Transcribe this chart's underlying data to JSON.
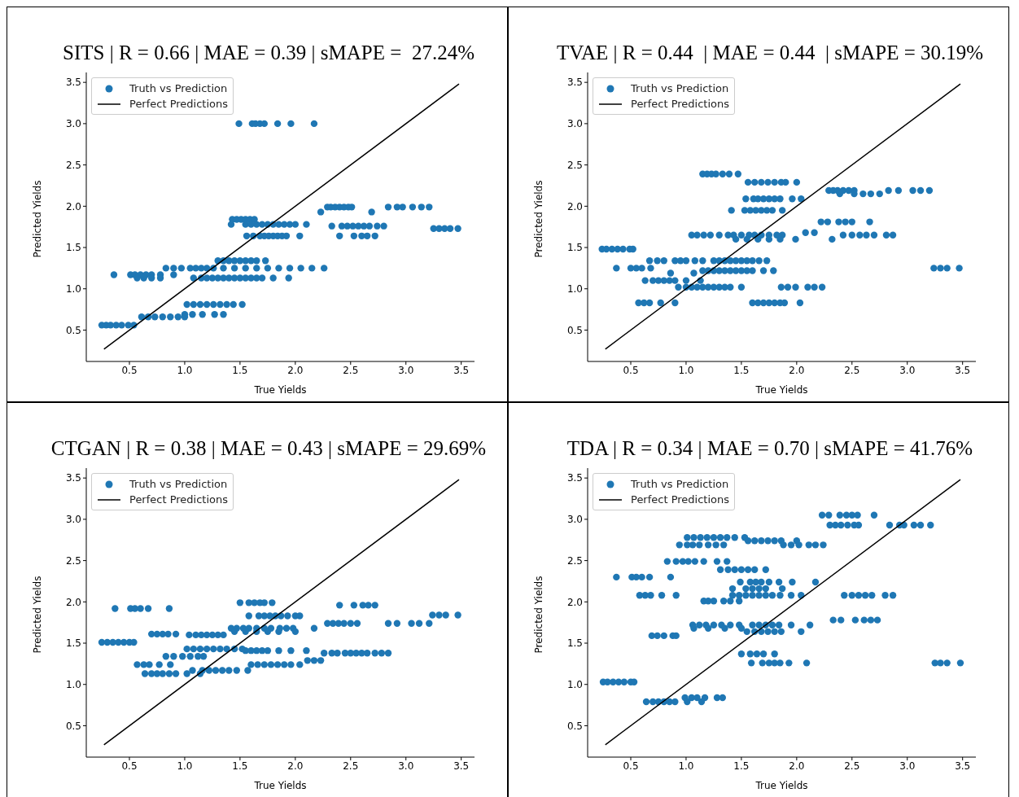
{
  "chart_data": [
    {
      "type": "scatter",
      "title": "SITS | R = 0.66 | MAE = 0.39 | sMAPE =  27.24%",
      "xlabel": "True Yields",
      "ylabel": "Predicted Yields",
      "xlim": [
        0.11,
        3.62
      ],
      "ylim": [
        0.12,
        3.62
      ],
      "xticks": [
        0.5,
        {
          "value": 1,
          "label": "1.0"
        },
        1.5,
        {
          "value": 2,
          "label": "2.0"
        },
        2.5,
        {
          "value": 3,
          "label": "3.0"
        },
        3.5
      ],
      "yticks": [
        0.5,
        {
          "value": 1,
          "label": "1.0"
        },
        1.5,
        {
          "value": 2,
          "label": "2.0"
        },
        2.5,
        {
          "value": 3,
          "label": "3.0"
        },
        3.5
      ],
      "legend": "top left",
      "series": [
        {
          "name": "Truth vs Prediction",
          "color": "#1f77b4",
          "marker": "circle",
          "x": [
            1.49,
            1.61,
            1.64,
            1.68,
            1.72,
            1.84,
            1.96,
            2.17,
            2.29,
            2.32,
            2.36,
            2.4,
            2.44,
            2.48,
            2.51,
            2.84,
            2.92,
            2.97,
            3.06,
            3.14,
            3.21,
            2.23,
            2.69,
            1.43,
            1.47,
            1.51,
            1.55,
            1.59,
            1.63,
            1.42,
            1.55,
            1.6,
            1.65,
            1.7,
            1.75,
            1.8,
            1.85,
            1.9,
            1.95,
            2.0,
            2.1,
            2.33,
            2.42,
            2.47,
            2.52,
            2.57,
            2.62,
            2.67,
            2.74,
            2.8,
            3.25,
            3.3,
            3.35,
            3.4,
            3.47,
            1.56,
            1.62,
            1.68,
            1.72,
            1.76,
            1.8,
            1.84,
            1.88,
            1.92,
            2.04,
            2.4,
            2.53,
            2.6,
            2.65,
            2.72,
            1.3,
            1.35,
            1.4,
            1.45,
            1.5,
            1.55,
            1.6,
            1.65,
            1.73,
            0.83,
            0.9,
            0.97,
            1.05,
            1.1,
            1.15,
            1.2,
            1.26,
            1.35,
            1.45,
            1.55,
            1.65,
            1.75,
            1.85,
            1.95,
            2.05,
            2.15,
            2.26,
            0.36,
            0.51,
            0.55,
            0.6,
            0.65,
            0.7,
            0.78,
            0.9,
            0.57,
            0.63,
            0.7,
            0.78,
            1.08,
            1.15,
            1.2,
            1.25,
            1.3,
            1.35,
            1.4,
            1.45,
            1.5,
            1.55,
            1.6,
            1.65,
            1.7,
            1.8,
            1.94,
            1.02,
            1.08,
            1.14,
            1.2,
            1.26,
            1.32,
            1.38,
            1.44,
            1.52,
            1.0,
            1.07,
            1.16,
            1.27,
            1.35,
            0.61,
            0.67,
            0.73,
            0.8,
            0.87,
            0.94,
            1.0,
            0.25,
            0.29,
            0.33,
            0.38,
            0.43,
            0.49,
            0.54
          ],
          "values": [
            3.0,
            3.0,
            3.0,
            3.0,
            3.0,
            3.0,
            3.0,
            3.0,
            1.99,
            1.99,
            1.99,
            1.99,
            1.99,
            1.99,
            1.99,
            1.99,
            1.99,
            1.99,
            1.99,
            1.99,
            1.99,
            1.93,
            1.93,
            1.84,
            1.84,
            1.84,
            1.84,
            1.84,
            1.84,
            1.78,
            1.78,
            1.78,
            1.78,
            1.78,
            1.78,
            1.78,
            1.78,
            1.78,
            1.78,
            1.78,
            1.78,
            1.76,
            1.76,
            1.76,
            1.76,
            1.76,
            1.76,
            1.76,
            1.76,
            1.76,
            1.73,
            1.73,
            1.73,
            1.73,
            1.73,
            1.64,
            1.64,
            1.64,
            1.64,
            1.64,
            1.64,
            1.64,
            1.64,
            1.64,
            1.64,
            1.64,
            1.64,
            1.64,
            1.64,
            1.64,
            1.34,
            1.34,
            1.34,
            1.34,
            1.34,
            1.34,
            1.34,
            1.34,
            1.34,
            1.25,
            1.25,
            1.25,
            1.25,
            1.25,
            1.25,
            1.25,
            1.25,
            1.25,
            1.25,
            1.25,
            1.25,
            1.25,
            1.25,
            1.25,
            1.25,
            1.25,
            1.25,
            1.17,
            1.17,
            1.17,
            1.17,
            1.17,
            1.17,
            1.17,
            1.17,
            1.13,
            1.13,
            1.13,
            1.13,
            1.13,
            1.13,
            1.13,
            1.13,
            1.13,
            1.13,
            1.13,
            1.13,
            1.13,
            1.13,
            1.13,
            1.13,
            1.13,
            1.13,
            1.13,
            0.81,
            0.81,
            0.81,
            0.81,
            0.81,
            0.81,
            0.81,
            0.81,
            0.81,
            0.69,
            0.69,
            0.69,
            0.69,
            0.69,
            0.66,
            0.66,
            0.66,
            0.66,
            0.66,
            0.66,
            0.66,
            0.56,
            0.56,
            0.56,
            0.56,
            0.56,
            0.56,
            0.56
          ]
        },
        {
          "name": "Perfect Predictions",
          "type": "line",
          "color": "#000000",
          "x": [
            0.27,
            3.48
          ],
          "values": [
            0.27,
            3.48
          ]
        }
      ]
    },
    {
      "type": "scatter",
      "title": "TVAE | R = 0.44  | MAE = 0.44  | sMAPE = 30.19%",
      "xlabel": "True Yields",
      "ylabel": "Predicted Yields",
      "xlim": [
        0.11,
        3.62
      ],
      "ylim": [
        0.12,
        3.62
      ],
      "xticks": [
        0.5,
        {
          "value": 1,
          "label": "1.0"
        },
        1.5,
        {
          "value": 2,
          "label": "2.0"
        },
        2.5,
        {
          "value": 3,
          "label": "3.0"
        },
        3.5
      ],
      "yticks": [
        0.5,
        {
          "value": 1,
          "label": "1.0"
        },
        1.5,
        {
          "value": 2,
          "label": "2.0"
        },
        2.5,
        {
          "value": 3,
          "label": "3.0"
        },
        3.5
      ],
      "legend": "top left",
      "series": [
        {
          "name": "Truth vs Prediction",
          "color": "#1f77b4",
          "marker": "circle",
          "x": [
            1.15,
            1.19,
            1.23,
            1.27,
            1.33,
            1.39,
            1.47,
            1.56,
            1.62,
            1.68,
            1.74,
            1.8,
            1.86,
            1.9,
            2.0,
            2.29,
            2.33,
            2.37,
            2.42,
            2.47,
            2.52,
            2.83,
            2.92,
            3.05,
            3.12,
            3.2,
            2.39,
            2.52,
            2.6,
            2.67,
            2.75,
            1.54,
            1.61,
            1.65,
            1.7,
            1.75,
            1.8,
            1.85,
            1.96,
            2.04,
            1.41,
            1.53,
            1.58,
            1.63,
            1.68,
            1.73,
            1.78,
            1.87,
            2.22,
            2.28,
            2.38,
            2.44,
            2.5,
            2.66,
            2.08,
            2.16,
            1.05,
            1.1,
            1.16,
            1.22,
            1.3,
            1.38,
            1.43,
            1.5,
            1.57,
            1.62,
            1.68,
            1.75,
            1.82,
            1.87,
            2.42,
            2.5,
            2.57,
            2.63,
            2.7,
            2.81,
            2.87,
            1.45,
            1.55,
            1.65,
            1.75,
            1.85,
            1.99,
            2.32,
            0.24,
            0.28,
            0.33,
            0.38,
            0.43,
            0.49,
            0.52,
            0.67,
            0.74,
            0.8,
            0.9,
            0.95,
            1.0,
            1.08,
            1.15,
            1.25,
            1.3,
            1.35,
            1.4,
            1.45,
            1.5,
            1.55,
            1.6,
            1.66,
            1.73,
            0.37,
            0.5,
            0.55,
            0.6,
            0.68,
            3.24,
            3.3,
            3.36,
            3.47,
            1.15,
            1.2,
            1.25,
            1.3,
            1.35,
            1.4,
            1.45,
            1.5,
            1.55,
            1.6,
            1.7,
            1.79,
            0.86,
            1.07,
            0.63,
            0.7,
            0.75,
            0.8,
            0.85,
            0.9,
            1.0,
            1.13,
            0.93,
            1.0,
            1.05,
            1.1,
            1.15,
            1.2,
            1.25,
            1.3,
            1.35,
            1.4,
            1.5,
            1.86,
            1.92,
            1.99,
            2.1,
            2.16,
            2.23,
            0.57,
            0.62,
            0.67,
            0.77,
            0.9,
            1.6,
            1.65,
            1.7,
            1.75,
            1.8,
            1.85,
            1.89,
            2.03
          ],
          "values": [
            2.39,
            2.39,
            2.39,
            2.39,
            2.39,
            2.39,
            2.39,
            2.29,
            2.29,
            2.29,
            2.29,
            2.29,
            2.29,
            2.29,
            2.29,
            2.19,
            2.19,
            2.19,
            2.19,
            2.19,
            2.19,
            2.19,
            2.19,
            2.19,
            2.19,
            2.19,
            2.15,
            2.15,
            2.15,
            2.15,
            2.15,
            2.09,
            2.09,
            2.09,
            2.09,
            2.09,
            2.09,
            2.09,
            2.09,
            2.09,
            1.95,
            1.95,
            1.95,
            1.95,
            1.95,
            1.95,
            1.95,
            1.95,
            1.81,
            1.81,
            1.81,
            1.81,
            1.81,
            1.81,
            1.68,
            1.68,
            1.65,
            1.65,
            1.65,
            1.65,
            1.65,
            1.65,
            1.65,
            1.65,
            1.65,
            1.65,
            1.65,
            1.65,
            1.65,
            1.65,
            1.65,
            1.65,
            1.65,
            1.65,
            1.65,
            1.65,
            1.65,
            1.6,
            1.6,
            1.6,
            1.6,
            1.6,
            1.6,
            1.6,
            1.48,
            1.48,
            1.48,
            1.48,
            1.48,
            1.48,
            1.48,
            1.34,
            1.34,
            1.34,
            1.34,
            1.34,
            1.34,
            1.34,
            1.34,
            1.34,
            1.34,
            1.34,
            1.34,
            1.34,
            1.34,
            1.34,
            1.34,
            1.34,
            1.34,
            1.25,
            1.25,
            1.25,
            1.25,
            1.25,
            1.25,
            1.25,
            1.25,
            1.25,
            1.22,
            1.22,
            1.22,
            1.22,
            1.22,
            1.22,
            1.22,
            1.22,
            1.22,
            1.22,
            1.22,
            1.22,
            1.19,
            1.19,
            1.1,
            1.1,
            1.1,
            1.1,
            1.1,
            1.1,
            1.1,
            1.1,
            1.02,
            1.02,
            1.02,
            1.02,
            1.02,
            1.02,
            1.02,
            1.02,
            1.02,
            1.02,
            1.02,
            1.02,
            1.02,
            1.02,
            1.02,
            1.02,
            1.02,
            0.83,
            0.83,
            0.83,
            0.83,
            0.83,
            0.83,
            0.83,
            0.83,
            0.83,
            0.83,
            0.83,
            0.83,
            0.83
          ]
        },
        {
          "name": "Perfect Predictions",
          "type": "line",
          "color": "#000000",
          "x": [
            0.27,
            3.48
          ],
          "values": [
            0.27,
            3.48
          ]
        }
      ]
    },
    {
      "type": "scatter",
      "title": "CTGAN | R = 0.38 | MAE = 0.43 | sMAPE = 29.69%",
      "xlabel": "True Yields",
      "ylabel": "Predicted Yields",
      "xlim": [
        0.11,
        3.62
      ],
      "ylim": [
        0.12,
        3.62
      ],
      "xticks": [
        0.5,
        {
          "value": 1,
          "label": "1.0"
        },
        1.5,
        {
          "value": 2,
          "label": "2.0"
        },
        2.5,
        {
          "value": 3,
          "label": "3.0"
        },
        3.5
      ],
      "yticks": [
        0.5,
        {
          "value": 1,
          "label": "1.0"
        },
        1.5,
        {
          "value": 2,
          "label": "2.0"
        },
        2.5,
        {
          "value": 3,
          "label": "3.0"
        },
        3.5
      ],
      "legend": "top left",
      "series": [
        {
          "name": "Truth vs Prediction",
          "color": "#1f77b4",
          "marker": "circle",
          "x": [
            1.5,
            1.58,
            1.63,
            1.68,
            1.72,
            1.79,
            2.4,
            2.53,
            2.61,
            2.66,
            2.72,
            0.37,
            0.51,
            0.55,
            0.6,
            0.67,
            0.86,
            3.24,
            3.3,
            3.36,
            3.47,
            1.58,
            1.67,
            1.72,
            1.77,
            1.82,
            1.87,
            1.93,
            2.0,
            2.04,
            2.29,
            2.34,
            2.39,
            2.44,
            2.5,
            2.56,
            2.84,
            2.92,
            3.05,
            3.12,
            3.21,
            1.42,
            1.47,
            1.53,
            1.58,
            1.65,
            1.72,
            1.78,
            1.86,
            1.92,
            1.98,
            2.17,
            1.45,
            1.55,
            1.65,
            1.75,
            1.85,
            2.0,
            0.7,
            0.75,
            0.8,
            0.85,
            0.92,
            1.04,
            1.1,
            1.15,
            1.2,
            1.25,
            1.3,
            1.35,
            0.25,
            0.3,
            0.35,
            0.4,
            0.45,
            0.5,
            0.54,
            1.02,
            1.08,
            1.14,
            1.2,
            1.26,
            1.32,
            1.38,
            1.45,
            1.52,
            1.55,
            1.6,
            1.65,
            1.7,
            1.75,
            1.85,
            1.96,
            2.1,
            2.26,
            2.33,
            2.38,
            2.45,
            2.5,
            2.55,
            2.6,
            2.65,
            2.72,
            2.78,
            2.84,
            0.83,
            0.9,
            0.98,
            1.05,
            1.12,
            1.17,
            2.11,
            2.17,
            2.23,
            0.57,
            0.63,
            0.68,
            0.77,
            0.87,
            1.6,
            1.66,
            1.72,
            1.78,
            1.84,
            1.9,
            1.96,
            2.04,
            1.07,
            1.16,
            1.22,
            1.28,
            1.34,
            1.4,
            1.47,
            1.57,
            0.64,
            0.7,
            0.75,
            0.8,
            0.86,
            0.92,
            1.02,
            1.14
          ],
          "values": [
            1.99,
            1.99,
            1.99,
            1.99,
            1.99,
            1.99,
            1.96,
            1.96,
            1.96,
            1.96,
            1.96,
            1.92,
            1.92,
            1.92,
            1.92,
            1.92,
            1.92,
            1.84,
            1.84,
            1.84,
            1.84,
            1.83,
            1.83,
            1.83,
            1.83,
            1.83,
            1.83,
            1.83,
            1.83,
            1.83,
            1.74,
            1.74,
            1.74,
            1.74,
            1.74,
            1.74,
            1.74,
            1.74,
            1.74,
            1.74,
            1.74,
            1.68,
            1.68,
            1.68,
            1.68,
            1.68,
            1.68,
            1.68,
            1.68,
            1.68,
            1.68,
            1.68,
            1.64,
            1.64,
            1.64,
            1.64,
            1.64,
            1.64,
            1.61,
            1.61,
            1.61,
            1.61,
            1.61,
            1.6,
            1.6,
            1.6,
            1.6,
            1.6,
            1.6,
            1.6,
            1.51,
            1.51,
            1.51,
            1.51,
            1.51,
            1.51,
            1.51,
            1.43,
            1.43,
            1.43,
            1.43,
            1.43,
            1.43,
            1.43,
            1.43,
            1.43,
            1.41,
            1.41,
            1.41,
            1.41,
            1.41,
            1.41,
            1.41,
            1.41,
            1.38,
            1.38,
            1.38,
            1.38,
            1.38,
            1.38,
            1.38,
            1.38,
            1.38,
            1.38,
            1.38,
            1.34,
            1.34,
            1.34,
            1.34,
            1.34,
            1.34,
            1.29,
            1.29,
            1.29,
            1.24,
            1.24,
            1.24,
            1.24,
            1.24,
            1.24,
            1.24,
            1.24,
            1.24,
            1.24,
            1.24,
            1.24,
            1.24,
            1.17,
            1.17,
            1.17,
            1.17,
            1.17,
            1.17,
            1.17,
            1.17,
            1.13,
            1.13,
            1.13,
            1.13,
            1.13,
            1.13,
            1.13,
            1.13
          ]
        },
        {
          "name": "Perfect Predictions",
          "type": "line",
          "color": "#000000",
          "x": [
            0.27,
            3.48
          ],
          "values": [
            0.27,
            3.48
          ]
        }
      ]
    },
    {
      "type": "scatter",
      "title": "TDA | R = 0.34 | MAE = 0.70 | sMAPE = 41.76%",
      "xlabel": "True Yields",
      "ylabel": "Predicted Yields",
      "xlim": [
        0.11,
        3.62
      ],
      "ylim": [
        0.12,
        3.62
      ],
      "xticks": [
        0.5,
        {
          "value": 1,
          "label": "1.0"
        },
        1.5,
        {
          "value": 2,
          "label": "2.0"
        },
        2.5,
        {
          "value": 3,
          "label": "3.0"
        },
        3.5
      ],
      "yticks": [
        0.5,
        {
          "value": 1,
          "label": "1.0"
        },
        1.5,
        {
          "value": 2,
          "label": "2.0"
        },
        2.5,
        {
          "value": 3,
          "label": "3.0"
        },
        3.5
      ],
      "legend": "top left",
      "series": [
        {
          "name": "Truth vs Prediction",
          "color": "#1f77b4",
          "marker": "circle",
          "x": [
            2.23,
            2.29,
            2.39,
            2.45,
            2.5,
            2.55,
            2.7,
            2.3,
            2.35,
            2.4,
            2.46,
            2.52,
            2.56,
            2.84,
            2.93,
            2.97,
            3.06,
            3.12,
            3.21,
            1.01,
            1.07,
            1.13,
            1.19,
            1.25,
            1.31,
            1.37,
            1.44,
            1.53,
            1.56,
            1.62,
            1.68,
            1.74,
            1.8,
            1.86,
            2.0,
            0.94,
            1.01,
            1.06,
            1.12,
            1.2,
            1.27,
            1.34,
            1.88,
            1.95,
            2.02,
            2.11,
            2.17,
            2.24,
            0.83,
            0.91,
            0.97,
            1.02,
            1.08,
            1.16,
            1.28,
            1.37,
            1.31,
            1.38,
            1.44,
            1.5,
            1.56,
            1.62,
            1.72,
            0.37,
            0.51,
            0.55,
            0.6,
            0.67,
            0.86,
            1.49,
            1.58,
            1.63,
            1.68,
            1.75,
            1.84,
            1.96,
            2.17,
            1.42,
            1.54,
            1.6,
            1.66,
            1.72,
            1.87,
            0.58,
            0.63,
            0.68,
            0.78,
            0.91,
            1.42,
            1.48,
            1.54,
            1.6,
            1.66,
            1.72,
            1.78,
            1.85,
            1.95,
            2.04,
            2.43,
            2.5,
            2.56,
            2.62,
            2.68,
            2.8,
            2.87,
            1.16,
            1.2,
            1.25,
            1.34,
            1.4,
            1.48,
            2.33,
            2.4,
            2.53,
            2.61,
            2.67,
            2.73,
            1.06,
            1.12,
            1.18,
            1.25,
            1.32,
            1.4,
            1.48,
            1.6,
            1.66,
            1.72,
            1.78,
            1.84,
            1.95,
            2.12,
            1.07,
            1.2,
            1.35,
            1.5,
            1.55,
            1.62,
            1.68,
            1.74,
            1.8,
            1.86,
            2.04,
            0.69,
            0.74,
            0.8,
            0.88,
            0.91,
            1.5,
            1.58,
            1.64,
            1.7,
            1.8,
            1.59,
            1.69,
            1.75,
            1.8,
            1.85,
            1.93,
            2.09,
            3.25,
            3.3,
            3.36,
            3.48,
            0.25,
            0.29,
            0.34,
            0.39,
            0.44,
            0.5,
            0.53,
            0.99,
            1.05,
            1.1,
            1.17,
            1.28,
            1.33,
            0.64,
            0.7,
            0.75,
            0.8,
            0.85,
            0.9,
            1.01,
            1.14
          ],
          "values": [
            3.05,
            3.05,
            3.05,
            3.05,
            3.05,
            3.05,
            3.05,
            2.93,
            2.93,
            2.93,
            2.93,
            2.93,
            2.93,
            2.93,
            2.93,
            2.93,
            2.93,
            2.93,
            2.93,
            2.78,
            2.78,
            2.78,
            2.78,
            2.78,
            2.78,
            2.78,
            2.78,
            2.78,
            2.74,
            2.74,
            2.74,
            2.74,
            2.74,
            2.74,
            2.74,
            2.69,
            2.69,
            2.69,
            2.69,
            2.69,
            2.69,
            2.69,
            2.69,
            2.69,
            2.69,
            2.69,
            2.69,
            2.69,
            2.49,
            2.49,
            2.49,
            2.49,
            2.49,
            2.49,
            2.49,
            2.49,
            2.39,
            2.39,
            2.39,
            2.39,
            2.39,
            2.39,
            2.39,
            2.3,
            2.3,
            2.3,
            2.3,
            2.3,
            2.3,
            2.24,
            2.24,
            2.24,
            2.24,
            2.24,
            2.24,
            2.24,
            2.24,
            2.16,
            2.16,
            2.16,
            2.16,
            2.16,
            2.16,
            2.08,
            2.08,
            2.08,
            2.08,
            2.08,
            2.08,
            2.08,
            2.08,
            2.08,
            2.08,
            2.08,
            2.08,
            2.08,
            2.08,
            2.08,
            2.08,
            2.08,
            2.08,
            2.08,
            2.08,
            2.08,
            2.08,
            2.01,
            2.01,
            2.01,
            2.01,
            2.01,
            2.01,
            1.78,
            1.78,
            1.78,
            1.78,
            1.78,
            1.78,
            1.72,
            1.72,
            1.72,
            1.72,
            1.72,
            1.72,
            1.72,
            1.72,
            1.72,
            1.72,
            1.72,
            1.72,
            1.72,
            1.72,
            1.68,
            1.68,
            1.68,
            1.68,
            1.64,
            1.64,
            1.64,
            1.64,
            1.64,
            1.64,
            1.64,
            1.59,
            1.59,
            1.59,
            1.59,
            1.59,
            1.37,
            1.37,
            1.37,
            1.37,
            1.37,
            1.26,
            1.26,
            1.26,
            1.26,
            1.26,
            1.26,
            1.26,
            1.26,
            1.26,
            1.26,
            1.26,
            1.03,
            1.03,
            1.03,
            1.03,
            1.03,
            1.03,
            1.03,
            0.84,
            0.84,
            0.84,
            0.84,
            0.84,
            0.84,
            0.79,
            0.79,
            0.79,
            0.79,
            0.79,
            0.79,
            0.79,
            0.79
          ]
        },
        {
          "name": "Perfect Predictions",
          "type": "line",
          "color": "#000000",
          "x": [
            0.27,
            3.48
          ],
          "values": [
            0.27,
            3.48
          ]
        }
      ]
    }
  ]
}
